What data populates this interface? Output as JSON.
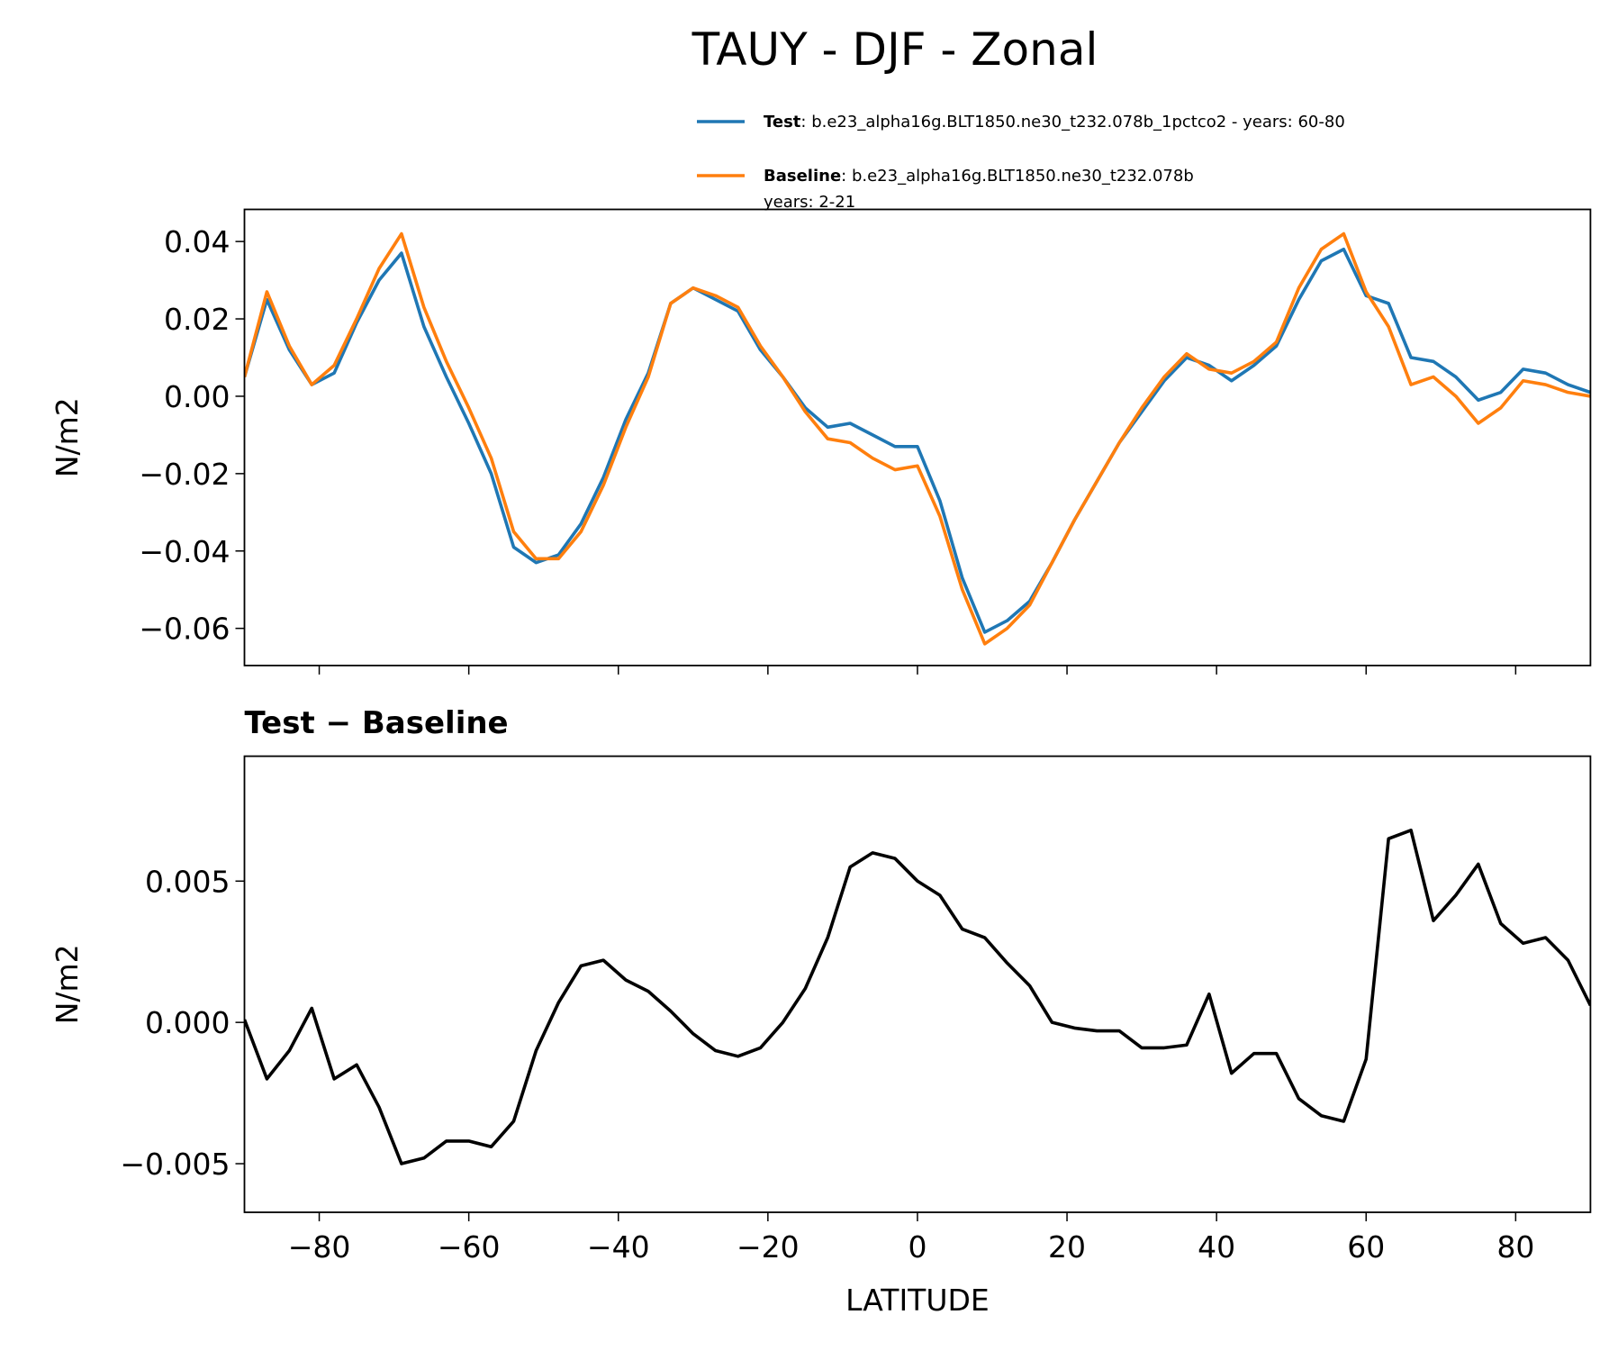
{
  "chart_data": [
    {
      "type": "line",
      "title": "TAUY - DJF - Zonal",
      "ylabel": "N/m2",
      "x": [
        -90,
        -87,
        -84,
        -81,
        -78,
        -75,
        -72,
        -69,
        -66,
        -63,
        -60,
        -57,
        -54,
        -51,
        -48,
        -45,
        -42,
        -39,
        -36,
        -33,
        -30,
        -27,
        -24,
        -21,
        -18,
        -15,
        -12,
        -9,
        -6,
        -3,
        0,
        3,
        6,
        9,
        12,
        15,
        18,
        21,
        24,
        27,
        30,
        33,
        36,
        39,
        42,
        45,
        48,
        51,
        54,
        57,
        60,
        63,
        66,
        69,
        72,
        75,
        78,
        81,
        84,
        87,
        90
      ],
      "series": [
        {
          "name": "Test",
          "label": [
            ": b.e23_alpha16g.BLT1850.ne30_t232.078b_1pctco2 - years: 60-80"
          ],
          "color": "#1f77b4",
          "values": [
            0.005,
            0.025,
            0.012,
            0.003,
            0.006,
            0.019,
            0.03,
            0.037,
            0.018,
            0.005,
            -0.007,
            -0.02,
            -0.039,
            -0.043,
            -0.041,
            -0.033,
            -0.021,
            -0.006,
            0.006,
            0.024,
            0.028,
            0.025,
            0.022,
            0.012,
            0.005,
            -0.003,
            -0.008,
            -0.007,
            -0.01,
            -0.013,
            -0.013,
            -0.027,
            -0.047,
            -0.061,
            -0.058,
            -0.053,
            -0.043,
            -0.032,
            -0.022,
            -0.012,
            -0.004,
            0.004,
            0.01,
            0.008,
            0.004,
            0.008,
            0.013,
            0.025,
            0.035,
            0.038,
            0.026,
            0.024,
            0.01,
            0.009,
            0.005,
            -0.001,
            0.001,
            0.007,
            0.006,
            0.003,
            0.001
          ]
        },
        {
          "name": "Baseline",
          "label": [
            ": b.e23_alpha16g.BLT1850.ne30_t232.078b",
            "years: 2-21"
          ],
          "color": "#ff7f0e",
          "values": [
            0.005,
            0.027,
            0.013,
            0.003,
            0.008,
            0.02,
            0.033,
            0.042,
            0.023,
            0.009,
            -0.003,
            -0.016,
            -0.035,
            -0.042,
            -0.042,
            -0.035,
            -0.023,
            -0.008,
            0.005,
            0.024,
            0.028,
            0.026,
            0.023,
            0.013,
            0.005,
            -0.004,
            -0.011,
            -0.012,
            -0.016,
            -0.019,
            -0.018,
            -0.031,
            -0.05,
            -0.064,
            -0.06,
            -0.054,
            -0.043,
            -0.032,
            -0.022,
            -0.012,
            -0.003,
            0.005,
            0.011,
            0.007,
            0.006,
            0.009,
            0.014,
            0.028,
            0.038,
            0.042,
            0.027,
            0.018,
            0.003,
            0.005,
            0.0,
            -0.007,
            -0.003,
            0.004,
            0.003,
            0.001,
            0.0
          ]
        }
      ],
      "xlim": [
        -90,
        90
      ],
      "xticks": [
        -80,
        -60,
        -40,
        -20,
        0,
        20,
        40,
        60,
        80
      ],
      "ylim": [
        -0.0696,
        0.0483
      ],
      "yticks": [
        {
          "value": -0.06,
          "label": "−0.06"
        },
        {
          "value": -0.04,
          "label": "−0.04"
        },
        {
          "value": -0.02,
          "label": "−0.02"
        },
        {
          "value": 0,
          "label": "0.00"
        },
        {
          "value": 0.02,
          "label": "0.02"
        },
        {
          "value": 0.04,
          "label": "0.04"
        }
      ],
      "legend": "top-right"
    },
    {
      "type": "line",
      "title": "Test − Baseline",
      "xlabel": "LATITUDE",
      "ylabel": "N/m2",
      "x": [
        -90,
        -87,
        -84,
        -81,
        -78,
        -75,
        -72,
        -69,
        -66,
        -63,
        -60,
        -57,
        -54,
        -51,
        -48,
        -45,
        -42,
        -39,
        -36,
        -33,
        -30,
        -27,
        -24,
        -21,
        -18,
        -15,
        -12,
        -9,
        -6,
        -3,
        0,
        3,
        6,
        9,
        12,
        15,
        18,
        21,
        24,
        27,
        30,
        33,
        36,
        39,
        42,
        45,
        48,
        51,
        54,
        57,
        60,
        63,
        66,
        69,
        72,
        75,
        78,
        81,
        84,
        87,
        90
      ],
      "series": [
        {
          "color": "#000000",
          "values": [
            0.0001,
            -0.002,
            -0.001,
            0.0005,
            -0.002,
            -0.0015,
            -0.003,
            -0.005,
            -0.0048,
            -0.0042,
            -0.0042,
            -0.0044,
            -0.0035,
            -0.001,
            0.0007,
            0.002,
            0.0022,
            0.0015,
            0.0011,
            0.0004,
            -0.0004,
            -0.001,
            -0.0012,
            -0.0009,
            0,
            0.0012,
            0.003,
            0.0055,
            0.006,
            0.0058,
            0.005,
            0.0045,
            0.0033,
            0.003,
            0.0021,
            0.0013,
            0,
            -0.0002,
            -0.0003,
            -0.0003,
            -0.0009,
            -0.0009,
            -0.0008,
            0.001,
            -0.0018,
            -0.0011,
            -0.0011,
            -0.0027,
            -0.0033,
            -0.0035,
            -0.0013,
            0.0065,
            0.0068,
            0.0036,
            0.0045,
            0.0056,
            0.0035,
            0.0028,
            0.003,
            0.0022,
            0.0006
          ]
        }
      ],
      "xlim": [
        -90,
        90
      ],
      "xticks": [
        {
          "value": -80,
          "label": "−80"
        },
        {
          "value": -60,
          "label": "−60"
        },
        {
          "value": -40,
          "label": "−40"
        },
        {
          "value": -20,
          "label": "−20"
        },
        {
          "value": 0,
          "label": "0"
        },
        {
          "value": 20,
          "label": "20"
        },
        {
          "value": 40,
          "label": "40"
        },
        {
          "value": 60,
          "label": "60"
        },
        {
          "value": 80,
          "label": "80"
        }
      ],
      "ylim": [
        -0.00672,
        0.00942
      ],
      "yticks": [
        {
          "value": -0.005,
          "label": "−0.005"
        },
        {
          "value": 0,
          "label": "0.000"
        },
        {
          "value": 0.005,
          "label": "0.005"
        }
      ]
    }
  ]
}
